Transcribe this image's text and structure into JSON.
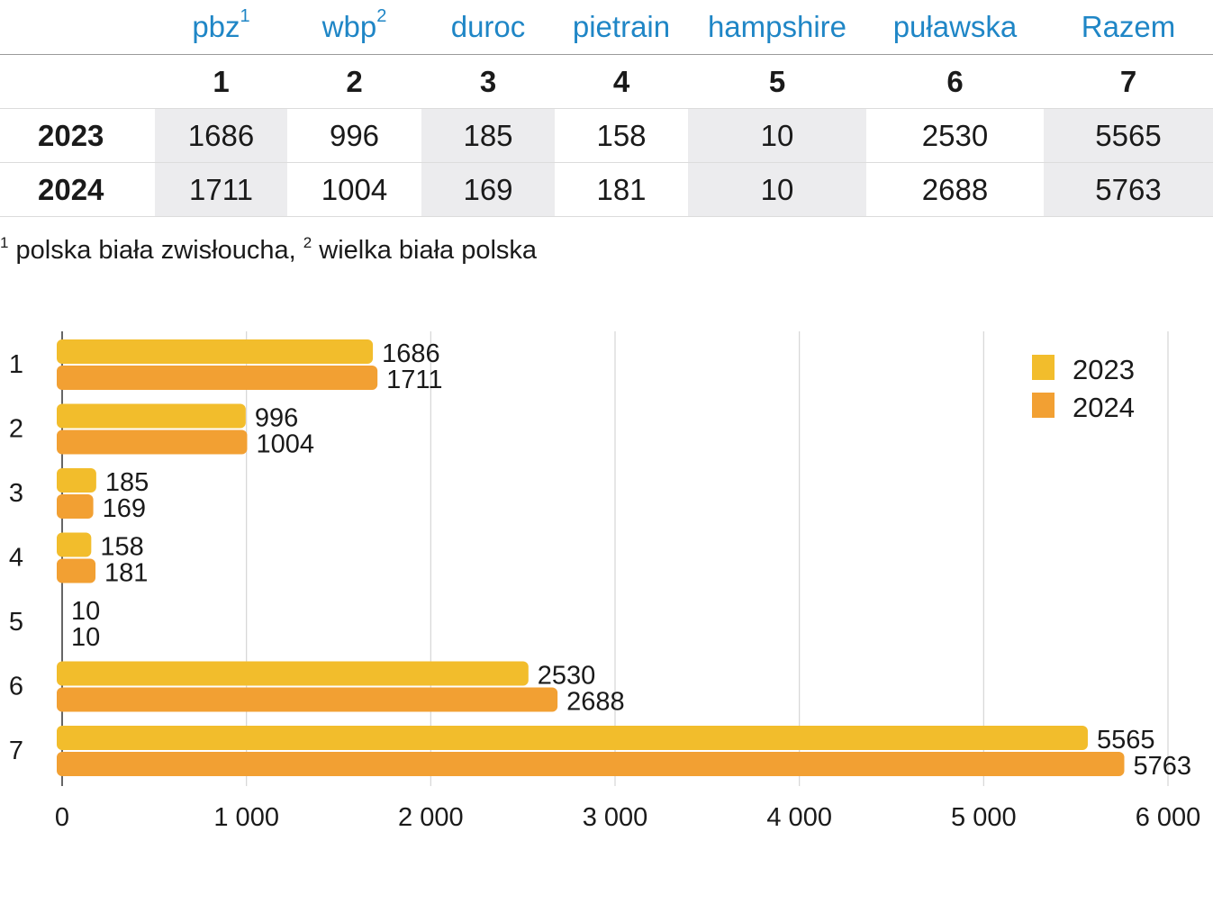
{
  "table": {
    "breeds": [
      {
        "name": "pbz",
        "sup": "1"
      },
      {
        "name": "wbp",
        "sup": "2"
      },
      {
        "name": "duroc",
        "sup": ""
      },
      {
        "name": "pietrain",
        "sup": ""
      },
      {
        "name": "hampshire",
        "sup": ""
      },
      {
        "name": "puławska",
        "sup": ""
      },
      {
        "name": "Razem",
        "sup": ""
      }
    ],
    "numbers": [
      "1",
      "2",
      "3",
      "4",
      "5",
      "6",
      "7"
    ],
    "rows": [
      {
        "year": "2023",
        "values": [
          "1686",
          "996",
          "185",
          "158",
          "10",
          "2530",
          "5565"
        ]
      },
      {
        "year": "2024",
        "values": [
          "1711",
          "1004",
          "169",
          "181",
          "10",
          "2688",
          "5763"
        ]
      }
    ],
    "shaded_columns": [
      0,
      2,
      4,
      6
    ]
  },
  "footnote": {
    "sup1": "1",
    "text1": "polska biała zwisłoucha,",
    "sup2": "2",
    "text2": "wielka biała polska"
  },
  "chart_data": {
    "type": "bar",
    "orientation": "horizontal",
    "categories": [
      "1",
      "2",
      "3",
      "4",
      "5",
      "6",
      "7"
    ],
    "series": [
      {
        "name": "2023",
        "color": "#f2bd2c",
        "values": [
          1686,
          996,
          185,
          158,
          10,
          2530,
          5565
        ]
      },
      {
        "name": "2024",
        "color": "#f2a033",
        "values": [
          1711,
          1004,
          169,
          181,
          10,
          2688,
          5763
        ]
      }
    ],
    "xlim": [
      0,
      6000
    ],
    "xticks": [
      0,
      1000,
      2000,
      3000,
      4000,
      5000,
      6000
    ],
    "xtick_labels": [
      "0",
      "1 000",
      "2 000",
      "3 000",
      "4 000",
      "5 000",
      "6 000"
    ],
    "grid": "vertical",
    "legend": "top-right",
    "title": "",
    "xlabel": "",
    "ylabel": ""
  }
}
